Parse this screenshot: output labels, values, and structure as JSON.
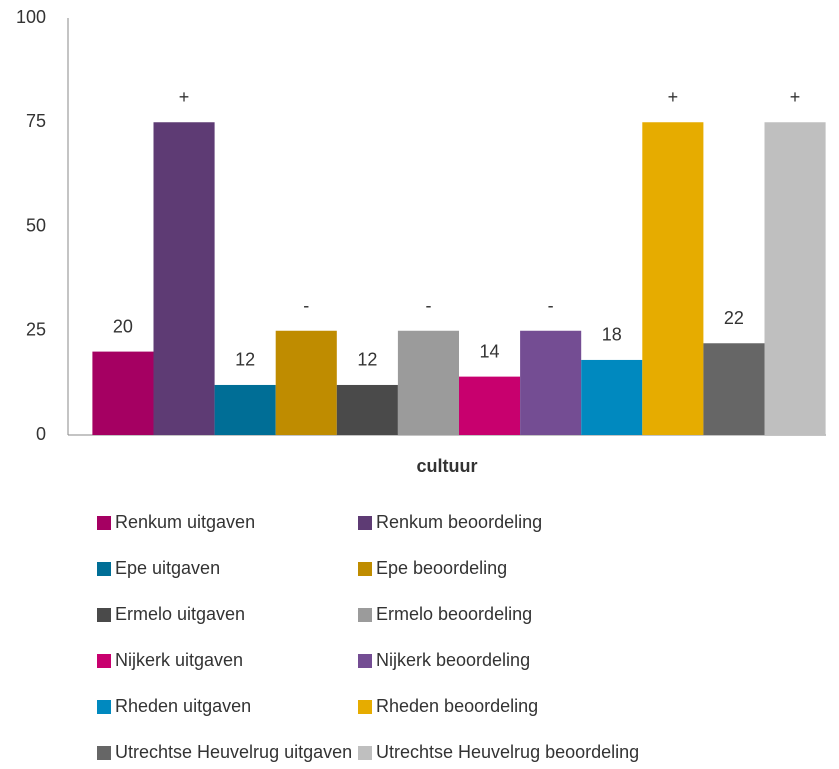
{
  "chart_data": {
    "type": "bar",
    "categories": [
      "cultuur"
    ],
    "series": [
      {
        "name": "Renkum uitgaven",
        "color": "#a50062",
        "values": [
          20
        ]
      },
      {
        "name": "Renkum beoordeling",
        "color": "#5e3b74",
        "values": [
          75
        ],
        "value_labels": [
          "+"
        ]
      },
      {
        "name": "Epe uitgaven",
        "color": "#006e96",
        "values": [
          12
        ]
      },
      {
        "name": "Epe beoordeling",
        "color": "#bf8c00",
        "values": [
          25
        ],
        "value_labels": [
          "-"
        ]
      },
      {
        "name": "Ermelo uitgaven",
        "color": "#4a4a4a",
        "values": [
          12
        ]
      },
      {
        "name": "Ermelo beoordeling",
        "color": "#9b9b9b",
        "values": [
          25
        ],
        "value_labels": [
          "-"
        ]
      },
      {
        "name": "Nijkerk uitgaven",
        "color": "#c8006e",
        "values": [
          14
        ]
      },
      {
        "name": "Nijkerk beoordeling",
        "color": "#744d93",
        "values": [
          25
        ],
        "value_labels": [
          "-"
        ]
      },
      {
        "name": "Rheden uitgaven",
        "color": "#0089bf",
        "values": [
          18
        ]
      },
      {
        "name": "Rheden beoordeling",
        "color": "#e6ac00",
        "values": [
          75
        ],
        "value_labels": [
          "+"
        ]
      },
      {
        "name": "Utrechtse Heuvelrug uitgaven",
        "color": "#666666",
        "values": [
          22
        ]
      },
      {
        "name": "Utrechtse Heuvelrug beoordeling",
        "color": "#bfbfbf",
        "values": [
          75
        ],
        "value_labels": [
          "+"
        ]
      }
    ],
    "ylim": [
      0,
      100
    ],
    "yticks": [
      0,
      25,
      50,
      75,
      100
    ],
    "grid": false,
    "legend": "bottom"
  }
}
